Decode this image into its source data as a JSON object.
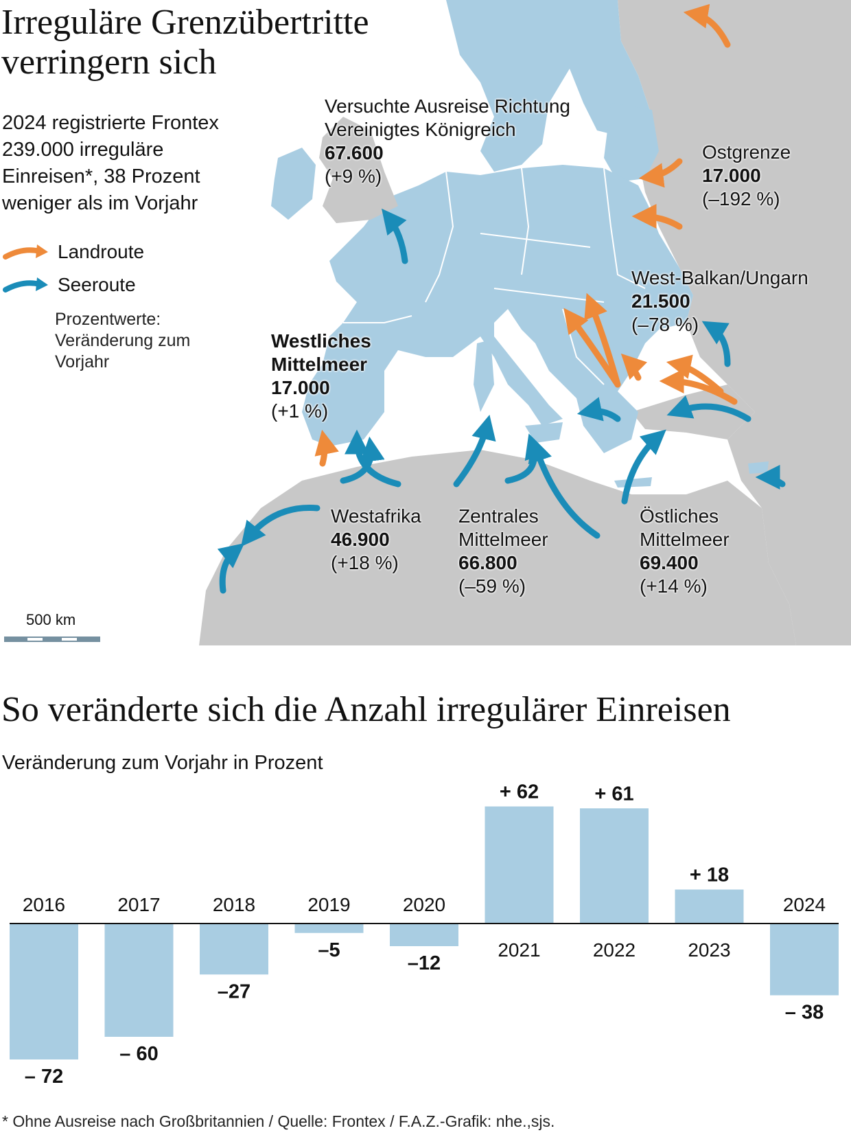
{
  "map": {
    "title_line1": "Irreguläre Grenzübertritte",
    "title_line2": "verringern sich",
    "intro": "2024 registrierte Frontex 239.000 irreguläre Einreisen*, 38 Prozent weniger als im Vorjahr",
    "legend": {
      "land_label": "Landroute",
      "sea_label": "Seeroute",
      "note": "Prozentwerte: Veränderung zum Vorjahr"
    },
    "colors": {
      "land": "#EE8A3A",
      "sea": "#1A8CB8",
      "eu": "#A9CDE2",
      "non_eu": "#C8C8C8",
      "water": "#FFFFFF"
    },
    "routes": [
      {
        "name_line1": "Versuchte Ausreise Richtung",
        "name_line2": "Vereinigtes Königreich",
        "value": "67.600",
        "change": "(+9 %)"
      },
      {
        "name_line1": "Ostgrenze",
        "name_line2": "",
        "value": "17.000",
        "change": "(–192 %)"
      },
      {
        "name_line1": "West-Balkan/Ungarn",
        "name_line2": "",
        "value": "21.500",
        "change": "(–78 %)"
      },
      {
        "name_line1": "Westliches",
        "name_line2": "Mittelmeer",
        "value": "17.000",
        "change": "(+1 %)"
      },
      {
        "name_line1": "Westafrika",
        "name_line2": "",
        "value": "46.900",
        "change": "(+18 %)"
      },
      {
        "name_line1": "Zentrales",
        "name_line2": "Mittelmeer",
        "value": "66.800",
        "change": "(–59 %)"
      },
      {
        "name_line1": "Östliches",
        "name_line2": "Mittelmeer",
        "value": "69.400",
        "change": "(+14 %)"
      }
    ],
    "scale_label": "500 km"
  },
  "chart_data": {
    "type": "bar",
    "title": "So veränderte sich die Anzahl irregulärer Einreisen",
    "subtitle": "Veränderung zum Vorjahr in Prozent",
    "categories": [
      "2016",
      "2017",
      "2018",
      "2019",
      "2020",
      "2021",
      "2022",
      "2023",
      "2024"
    ],
    "values": [
      -72,
      -60,
      -27,
      -5,
      -12,
      62,
      61,
      18,
      -38
    ],
    "value_labels": [
      "– 72",
      "– 60",
      "–27",
      "–5",
      "–12",
      "+ 62",
      "+ 61",
      "+ 18",
      "– 38"
    ],
    "ylim": [
      -75,
      65
    ],
    "bar_color": "#A9CDE2",
    "grid": false
  },
  "footnote": "* Ohne Ausreise nach  Großbritannien / Quelle: Frontex / F.A.Z.-Grafik: nhe.,sjs."
}
